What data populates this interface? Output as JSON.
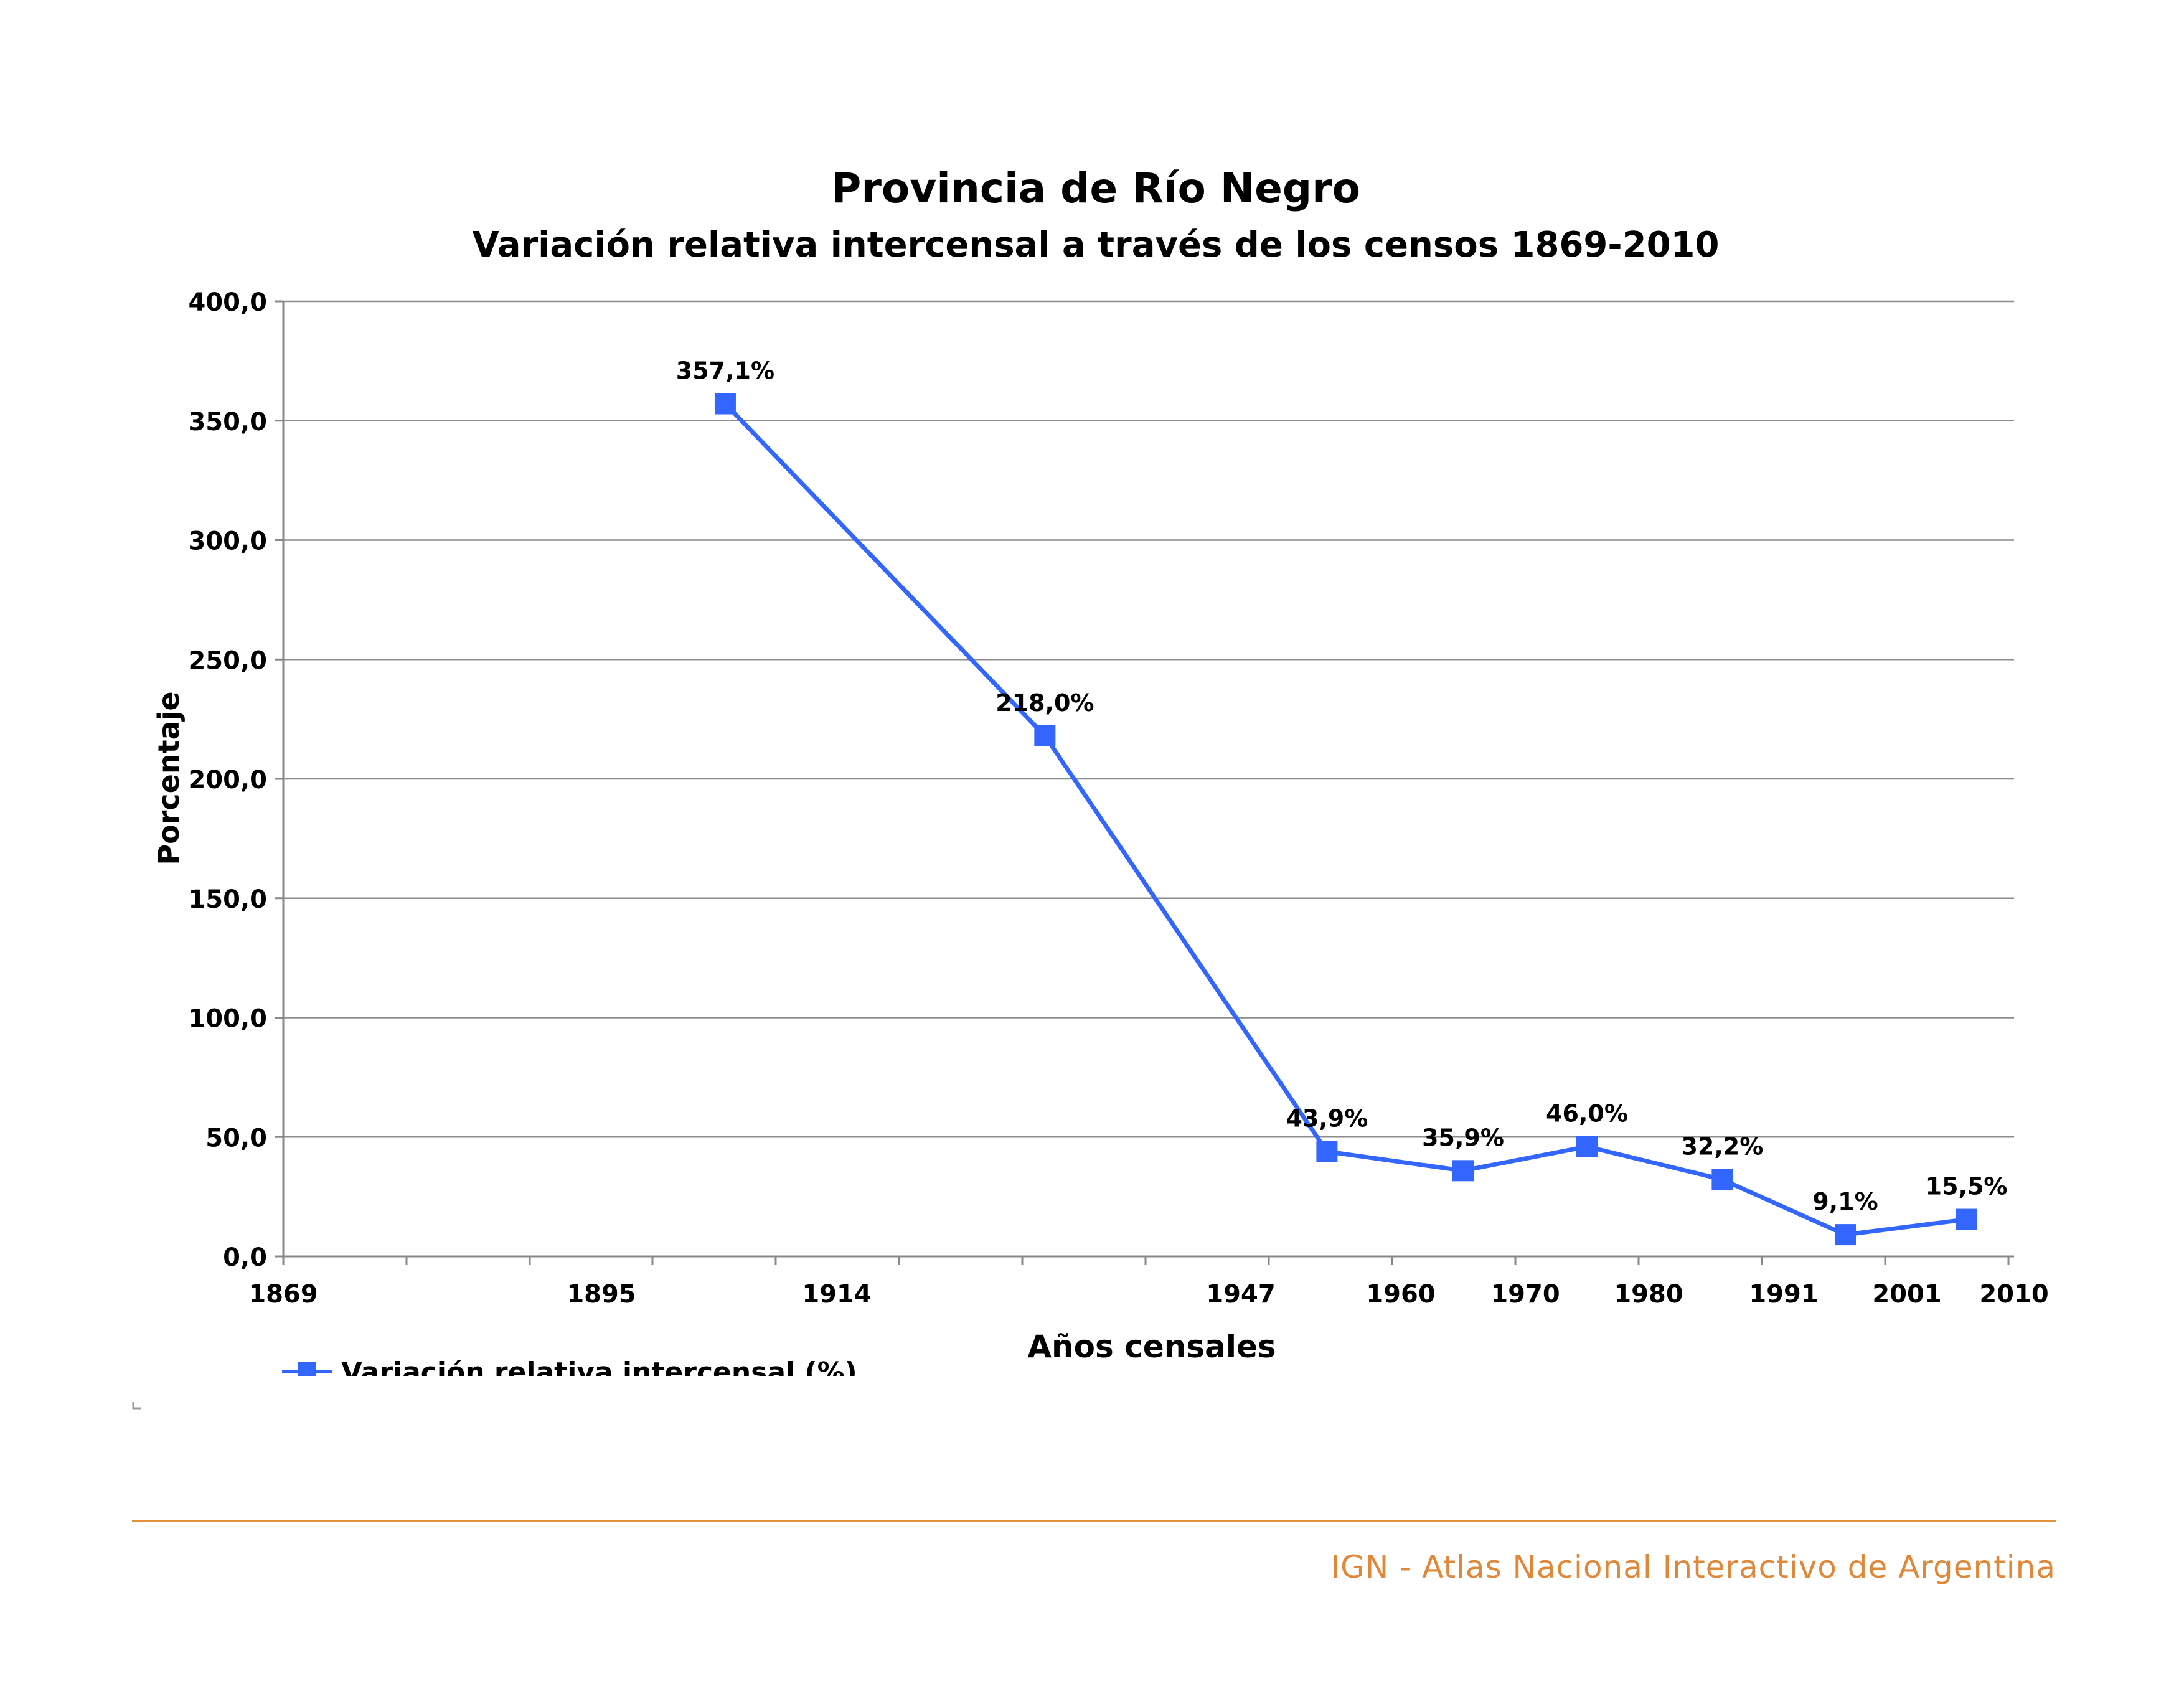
{
  "chart_data": {
    "type": "line",
    "title": "Provincia de Río Negro",
    "subtitle": "Variación relativa intercensal a través de los censos 1869-2010",
    "xlabel": "Años censales",
    "ylabel": "Porcentaje",
    "ylim": [
      0,
      400
    ],
    "y_ticks": [
      "0,0",
      "50,0",
      "100,0",
      "150,0",
      "200,0",
      "250,0",
      "300,0",
      "350,0",
      "400,0"
    ],
    "y_tick_values": [
      0,
      50,
      100,
      150,
      200,
      250,
      300,
      350,
      400
    ],
    "x_ticks": [
      "1869",
      "1895",
      "1914",
      "1947",
      "1960",
      "1970",
      "1980",
      "1991",
      "2001",
      "2010"
    ],
    "grid": true,
    "legend_position": "bottom-left",
    "series": [
      {
        "name": "Variación relativa intercensal (%)",
        "color": "#3366ff",
        "points": [
          {
            "x": 1905,
            "y": 357.1,
            "label": "357,1%"
          },
          {
            "x": 1931,
            "y": 218.0,
            "label": "218,0%"
          },
          {
            "x": 1954,
            "y": 43.9,
            "label": "43,9%"
          },
          {
            "x": 1965,
            "y": 35.9,
            "label": "35,9%"
          },
          {
            "x": 1975,
            "y": 46.0,
            "label": "46,0%"
          },
          {
            "x": 1986,
            "y": 32.2,
            "label": "32,2%"
          },
          {
            "x": 1996,
            "y": 9.1,
            "label": "9,1%"
          },
          {
            "x": 2006,
            "y": 15.5,
            "label": "15,5%"
          }
        ]
      }
    ]
  },
  "footer": {
    "source_text": "IGN - Atlas Nacional Interactivo de Argentina",
    "accent_color": "#e0883a"
  }
}
